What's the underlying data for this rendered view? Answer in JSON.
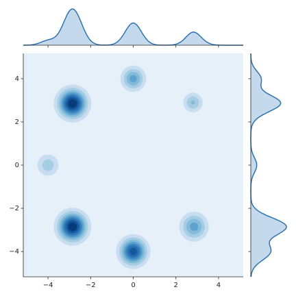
{
  "chart_data": {
    "type": "kde2d",
    "clusters": [
      {
        "x": -2.85,
        "y": 2.85,
        "weight": 1.0,
        "sd": 0.42
      },
      {
        "x": 0,
        "y": 4,
        "weight": 0.5,
        "sd": 0.35
      },
      {
        "x": 2.8,
        "y": 2.9,
        "weight": 0.35,
        "sd": 0.3
      },
      {
        "x": -4,
        "y": 0,
        "weight": 0.3,
        "sd": 0.35
      },
      {
        "x": -2.85,
        "y": -2.85,
        "weight": 1.0,
        "sd": 0.42
      },
      {
        "x": 0,
        "y": -4,
        "weight": 0.85,
        "sd": 0.4
      },
      {
        "x": 2.85,
        "y": -2.85,
        "weight": 0.5,
        "sd": 0.4
      }
    ],
    "colors": [
      "#e6f0f9",
      "#c8ddf0",
      "#a5cde3",
      "#83bbdb",
      "#5ea3cf",
      "#3e88c1",
      "#2870b1",
      "#15579d",
      "#083c78"
    ],
    "line_color": "#2c73b0",
    "marginal_fill": "#c5d9ec",
    "xlim": [
      -5.16,
      5.16
    ],
    "ylim": [
      -5.17,
      5.17
    ],
    "xticks": [
      {
        "value": -4,
        "label": "−4"
      },
      {
        "value": -2,
        "label": "−2"
      },
      0,
      2,
      4
    ],
    "yticks": [
      {
        "value": -4,
        "label": "−4"
      },
      {
        "value": -2,
        "label": "−2"
      },
      0,
      2,
      4
    ]
  }
}
